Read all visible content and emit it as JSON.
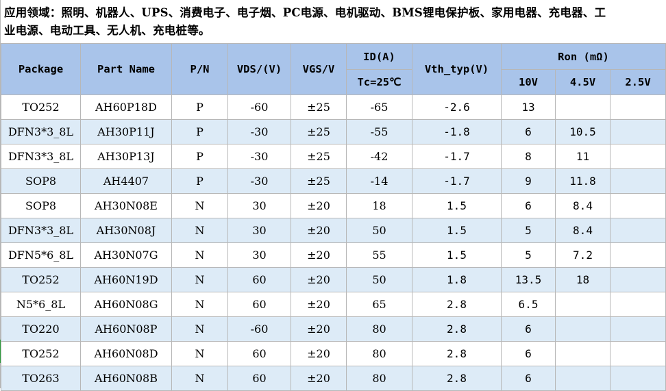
{
  "intro": {
    "line1": "应用领域：照明、机器人、UPS、消费电子、电子烟、PC电源、电机驱动、BMS锂电保护板、家用电器、充电器、工",
    "line2": "业电源、电动工具、无人机、充电桩等。"
  },
  "table": {
    "headers": {
      "package": "Package",
      "part_name": "Part Name",
      "pn": "P/N",
      "vds": "VDS/(V)",
      "vgs": "VGS/V",
      "id": "ID(A)",
      "id_cond": "Tc=25℃",
      "vth": "Vth_typ(V)",
      "ron": "Ron (mΩ)",
      "ron_10v": "10V",
      "ron_45v": "4.5V",
      "ron_25v": "2.5V"
    },
    "rows": [
      {
        "package": "TO252",
        "part": "AH60P18D",
        "pn": "P",
        "vds": "-60",
        "vgs": "±25",
        "id": "-65",
        "vth": "-2.6",
        "r10": "13",
        "r45": "",
        "r25": ""
      },
      {
        "package": "DFN3*3_8L",
        "part": "AH30P11J",
        "pn": "P",
        "vds": "-30",
        "vgs": "±25",
        "id": "-55",
        "vth": "-1.8",
        "r10": "6",
        "r45": "10.5",
        "r25": ""
      },
      {
        "package": "DFN3*3_8L",
        "part": "AH30P13J",
        "pn": "P",
        "vds": "-30",
        "vgs": "±25",
        "id": "-42",
        "vth": "-1.7",
        "r10": "8",
        "r45": "11",
        "r25": ""
      },
      {
        "package": "SOP8",
        "part": "AH4407",
        "pn": "P",
        "vds": "-30",
        "vgs": "±25",
        "id": "-14",
        "vth": "-1.7",
        "r10": "9",
        "r45": "11.8",
        "r25": ""
      },
      {
        "package": "SOP8",
        "part": "AH30N08E",
        "pn": "N",
        "vds": "30",
        "vgs": "±20",
        "id": "18",
        "vth": "1.5",
        "r10": "6",
        "r45": "8.4",
        "r25": ""
      },
      {
        "package": "DFN3*3_8L",
        "part": "AH30N08J",
        "pn": "N",
        "vds": "30",
        "vgs": "±20",
        "id": "50",
        "vth": "1.5",
        "r10": "5",
        "r45": "8.4",
        "r25": ""
      },
      {
        "package": "DFN5*6_8L",
        "part": "AH30N07G",
        "pn": "N",
        "vds": "30",
        "vgs": "±20",
        "id": "55",
        "vth": "1.5",
        "r10": "5",
        "r45": "7.2",
        "r25": ""
      },
      {
        "package": "TO252",
        "part": "AH60N19D",
        "pn": "N",
        "vds": "60",
        "vgs": "±20",
        "id": "50",
        "vth": "1.8",
        "r10": "13.5",
        "r45": "18",
        "r25": ""
      },
      {
        "package": "N5*6_8L",
        "part": "AH60N08G",
        "pn": "N",
        "vds": "60",
        "vgs": "±20",
        "id": "65",
        "vth": "2.8",
        "r10": "6.5",
        "r45": "",
        "r25": ""
      },
      {
        "package": "TO220",
        "part": "AH60N08P",
        "pn": "N",
        "vds": "-60",
        "vgs": "±20",
        "id": "80",
        "vth": "2.8",
        "r10": "6",
        "r45": "",
        "r25": ""
      },
      {
        "package": "TO252",
        "part": "AH60N08D",
        "pn": "N",
        "vds": "60",
        "vgs": "±20",
        "id": "80",
        "vth": "2.8",
        "r10": "6",
        "r45": "",
        "r25": ""
      },
      {
        "package": "TO263",
        "part": "AH60N08B",
        "pn": "N",
        "vds": "60",
        "vgs": "±20",
        "id": "80",
        "vth": "2.8",
        "r10": "6",
        "r45": "",
        "r25": ""
      }
    ]
  },
  "colors": {
    "header_bg": "#a9c4ea",
    "row_alt_bg": "#ddebf7",
    "row_bg": "#ffffff",
    "grid": "#b7b7b7",
    "selection_marker": "#2e9a3c"
  }
}
